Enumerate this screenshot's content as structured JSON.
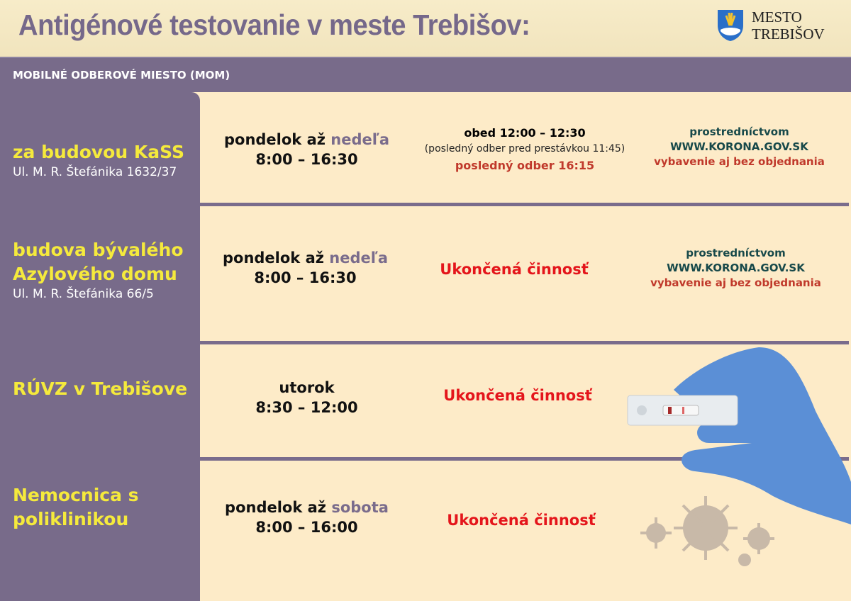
{
  "header": {
    "title": "Antigénové testovanie v meste Trebišov:",
    "logo_line1": "MESTO",
    "logo_line2": "TREBIŠOV"
  },
  "band": {
    "label": "MOBILNÉ ODBEROVÉ MIESTO (MOM)"
  },
  "rows": [
    {
      "location": "za budovou KaSS",
      "address": "Ul. M. R. Štefánika 1632/37",
      "days_prefix": "pondelok až ",
      "days_end": "nedeľa",
      "hours": "8:00 – 16:30",
      "break": "obed 12:00 – 12:30",
      "break_note": "(posledný odber pred prestávkou 11:45)",
      "last": "posledný odber 16:15",
      "reg1": "prostredníctvom",
      "reg2": "WWW.KORONA.GOV.SK",
      "reg3": "vybavenie aj bez objednania"
    },
    {
      "location_l1": "budova bývalého",
      "location_l2": "Azylového domu",
      "address": "Ul. M. R. Štefánika 66/5",
      "days_prefix": "pondelok až ",
      "days_end": "nedeľa",
      "hours": "8:00 – 16:30",
      "status": "Ukončená činnosť",
      "reg1": "prostredníctvom",
      "reg2": "WWW.KORONA.GOV.SK",
      "reg3": "vybavenie aj bez objednania"
    },
    {
      "location": "RÚVZ v Trebišove",
      "days": "utorok",
      "hours": "8:30 – 12:00",
      "status": "Ukončená činnosť"
    },
    {
      "location_l1": "Nemocnica s",
      "location_l2": "poliklinikou",
      "days_prefix": "pondelok až ",
      "days_end": "sobota",
      "hours": "8:00 – 16:00",
      "status": "Ukončená činnosť"
    }
  ],
  "colors": {
    "purple": "#786b8a",
    "yellow": "#f5ea3c",
    "cream": "#fdebc8",
    "red": "#e4151b",
    "glove": "#5b8fd6"
  },
  "icons": [
    "coat-of-arms",
    "gloved-hand-with-antigen-test",
    "virus-icon"
  ]
}
